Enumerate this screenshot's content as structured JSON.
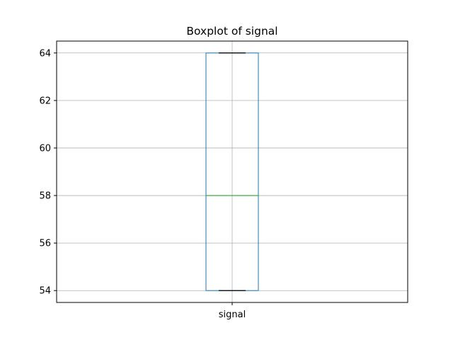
{
  "chart_data": {
    "type": "boxplot",
    "title": "Boxplot of signal",
    "xlabel": "",
    "ylabel": "",
    "categories": [
      "signal"
    ],
    "series": [
      {
        "name": "signal",
        "whisker_low": 54,
        "q1": 54,
        "median": 58,
        "q3": 64,
        "whisker_high": 64
      }
    ],
    "ylim": [
      53.5,
      64.5
    ],
    "yticks": [
      54,
      56,
      58,
      60,
      62,
      64
    ],
    "grid": true,
    "colors": {
      "box": "#1f77b4",
      "median": "#2ca02c",
      "whisker_cap": "#000000",
      "grid": "#b0b0b0",
      "axes": "#000000"
    }
  }
}
